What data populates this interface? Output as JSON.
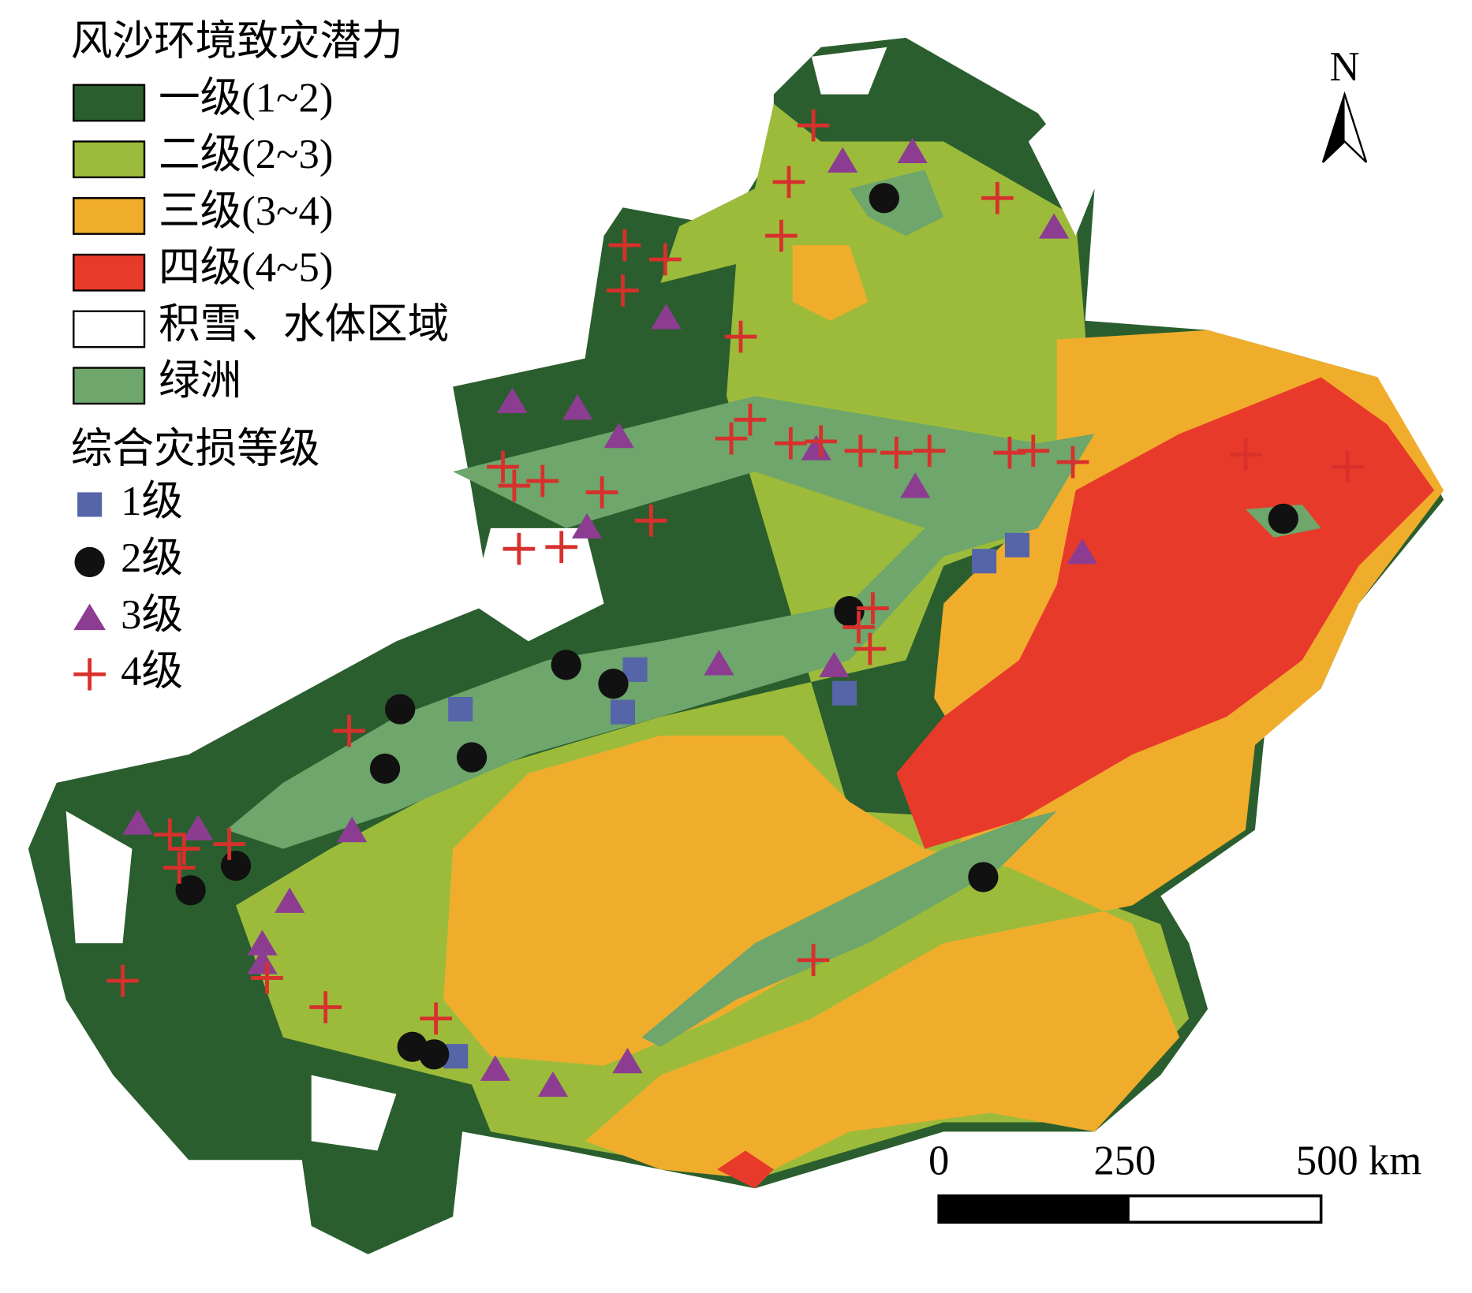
{
  "legend": {
    "title": "风沙环境致灾潜力",
    "items": [
      "一级(1~2)",
      "二级(2~3)",
      "三级(3~4)",
      "四级(4~5)",
      "积雪、水体区域",
      "绿洲"
    ]
  },
  "damage_legend": {
    "title": "综合灾损等级",
    "items": [
      "1级",
      "2级",
      "3级",
      "4级"
    ]
  },
  "north": "N",
  "scale_bar": {
    "labels": [
      "0",
      "250",
      "500 km"
    ]
  }
}
